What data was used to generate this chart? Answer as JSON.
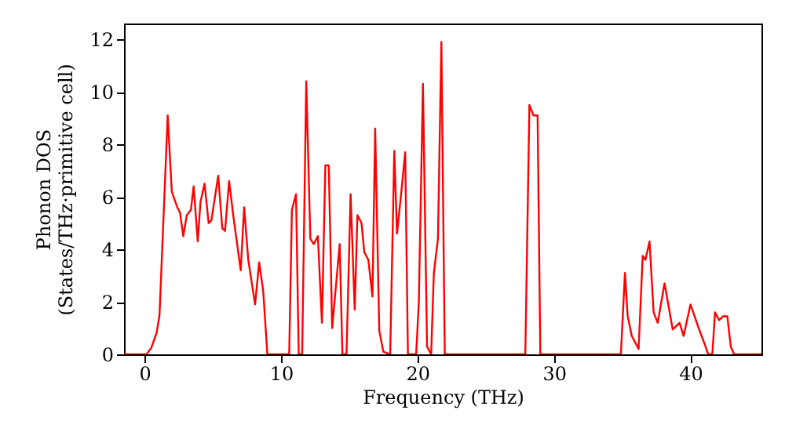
{
  "chart_data": {
    "type": "line",
    "xlabel": "Frequency (THz)",
    "ylabel": "Phonon DOS\n(States/THz·primitive cell)",
    "xlim": [
      -1.5,
      45.2
    ],
    "ylim": [
      0,
      12.6
    ],
    "xticks": [
      0,
      10,
      20,
      30,
      40
    ],
    "yticks": [
      0,
      2,
      4,
      6,
      8,
      10,
      12
    ],
    "grid": false,
    "marker": "none",
    "line_style": "solid",
    "series": [
      {
        "color": "#ff0000",
        "x": [
          -1.5,
          0.15,
          0.5,
          0.9,
          1.1,
          1.7,
          2.0,
          2.4,
          2.6,
          2.84,
          3.1,
          3.4,
          3.6,
          3.9,
          4.1,
          4.4,
          4.7,
          4.9,
          5.4,
          5.7,
          5.9,
          6.2,
          6.5,
          7.05,
          7.3,
          7.6,
          8.1,
          8.4,
          8.7,
          9.0,
          10.6,
          10.8,
          11.1,
          11.3,
          11.55,
          11.85,
          12.15,
          12.4,
          12.7,
          13.0,
          13.25,
          13.5,
          13.75,
          14.3,
          14.5,
          14.8,
          15.1,
          15.4,
          15.6,
          15.9,
          16.1,
          16.4,
          16.7,
          16.9,
          17.2,
          17.5,
          18.0,
          18.3,
          18.5,
          18.8,
          19.1,
          19.3,
          19.9,
          20.1,
          20.4,
          20.7,
          21.0,
          21.2,
          21.5,
          21.75,
          22.0,
          27.9,
          28.2,
          28.5,
          28.8,
          29.0,
          34.9,
          35.2,
          35.4,
          35.7,
          36.2,
          36.5,
          36.7,
          37.0,
          37.3,
          37.6,
          38.1,
          38.7,
          39.2,
          39.5,
          40.0,
          40.6,
          41.1,
          41.3,
          41.6,
          41.8,
          42.1,
          42.4,
          42.7,
          42.95,
          43.2,
          45.2
        ],
        "values": [
          0,
          0,
          0.25,
          0.85,
          1.5,
          9.1,
          6.2,
          5.6,
          5.4,
          4.5,
          5.3,
          5.5,
          6.4,
          4.3,
          5.8,
          6.5,
          5.0,
          5.1,
          6.8,
          4.8,
          4.7,
          6.6,
          5.3,
          3.2,
          5.6,
          3.6,
          1.9,
          3.5,
          2.4,
          0,
          0,
          5.5,
          6.1,
          0,
          0,
          10.4,
          4.4,
          4.2,
          4.5,
          1.2,
          7.2,
          7.2,
          1.0,
          4.2,
          0,
          0,
          6.1,
          1.7,
          5.3,
          5.0,
          3.9,
          3.6,
          2.2,
          8.6,
          0.9,
          0.1,
          0,
          7.75,
          4.6,
          6.1,
          7.7,
          0,
          0,
          2.0,
          10.3,
          0.3,
          0,
          3.1,
          4.4,
          11.9,
          0,
          0,
          9.5,
          9.1,
          9.1,
          0,
          0,
          3.1,
          1.45,
          0.7,
          0.2,
          3.75,
          3.6,
          4.3,
          1.6,
          1.2,
          2.7,
          0.95,
          1.2,
          0.7,
          1.9,
          1.0,
          0.3,
          0,
          0,
          1.6,
          1.3,
          1.45,
          1.45,
          0.3,
          0,
          0
        ]
      }
    ]
  }
}
